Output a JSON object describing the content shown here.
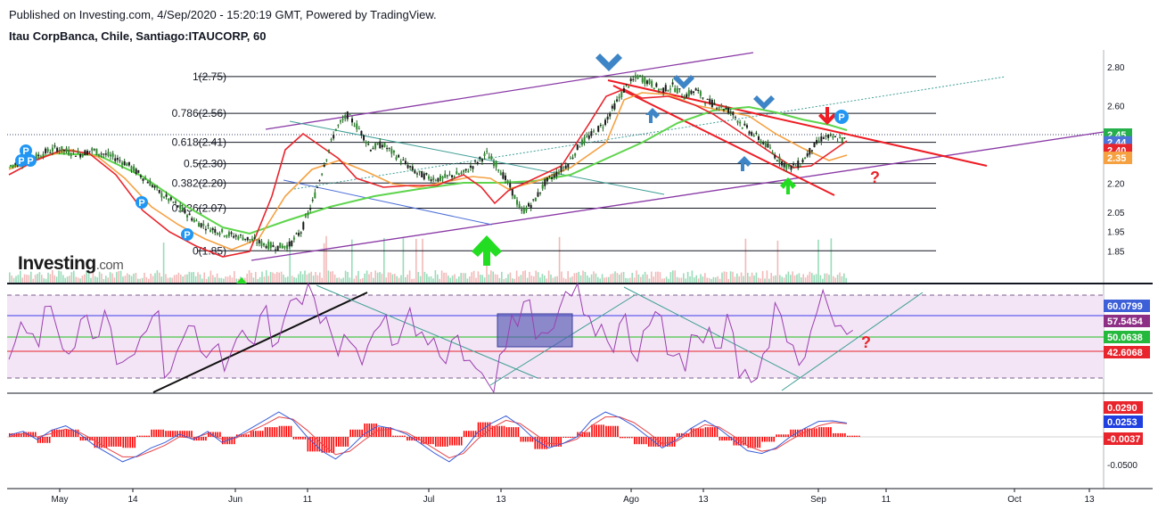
{
  "header": {
    "published": "Published on Investing.com, 4/Sep/2020 - 15:20:19 GMT, Powered by TradingView.",
    "symbol": "Itau CorpBanca, Chile, Santiago:ITAUCORP, 60"
  },
  "logo": {
    "name": "Investing",
    "suffix": ".com"
  },
  "colors": {
    "price_ma_red": "#e8242c",
    "price_ma_orange": "#f5a142",
    "price_ma_green": "#5ed44c",
    "trend_red": "#ee1c24",
    "channel_purple": "#8a3aa6",
    "teal_line": "#3f9f96",
    "rsi": "#9b3fb0",
    "macd": "#3b5fd8",
    "signal": "#e8454a",
    "hist": "#ff0000",
    "arrow_blue": "#3d85c6",
    "arrow_green": "#22dd22"
  },
  "chart_data": [
    {
      "type": "line",
      "panel": "price",
      "title": "",
      "y_axis_ticks": [
        "2.80",
        "2.60",
        "2.45",
        "2.20",
        "2.05",
        "1.95",
        "1.85"
      ],
      "ylim": [
        1.82,
        2.88
      ],
      "x_axis_ticks": [
        "May",
        "14",
        "Jun",
        "11",
        "Jul",
        "13",
        "Ago",
        "13",
        "Sep",
        "11",
        "Oct",
        "13"
      ],
      "fib_levels": [
        {
          "label": "1(2.75)",
          "value": 2.75
        },
        {
          "label": "0.786(2.56)",
          "value": 2.56
        },
        {
          "label": "0.618(2.41)",
          "value": 2.41
        },
        {
          "label": "0.5(2.30)",
          "value": 2.3
        },
        {
          "label": "0.382(2.20)",
          "value": 2.2
        },
        {
          "label": "0.236(2.07)",
          "value": 2.07
        },
        {
          "label": "0(1.85)",
          "value": 1.85
        }
      ],
      "price_tags": [
        {
          "label": "2.45",
          "value": 2.45,
          "color": "#26b04c"
        },
        {
          "label": "2.44",
          "value": 2.41,
          "color": "#4c74d8"
        },
        {
          "label": "2.40",
          "value": 2.37,
          "color": "#e8242c"
        },
        {
          "label": "2.35",
          "value": 2.33,
          "color": "#f5a142"
        }
      ],
      "series": [
        {
          "values": [
            2.29,
            2.31,
            2.33,
            2.36,
            2.38,
            2.36,
            2.35,
            2.37,
            2.35,
            2.33,
            2.3,
            2.25,
            2.2,
            2.14,
            2.1,
            2.05,
            2.0,
            1.97,
            1.95,
            1.93,
            1.92,
            1.9,
            1.88,
            1.87,
            1.88,
            1.95,
            2.1,
            2.3,
            2.48,
            2.55,
            2.48,
            2.38,
            2.4,
            2.35,
            2.3,
            2.25,
            2.23,
            2.22,
            2.24,
            2.25,
            2.3,
            2.35,
            2.28,
            2.18,
            2.05,
            2.1,
            2.2,
            2.25,
            2.3,
            2.4,
            2.45,
            2.5,
            2.6,
            2.7,
            2.75,
            2.72,
            2.68,
            2.7,
            2.65,
            2.68,
            2.62,
            2.6,
            2.57,
            2.5,
            2.45,
            2.4,
            2.33,
            2.28,
            2.3,
            2.38,
            2.44,
            2.43,
            2.42
          ]
        }
      ]
    },
    {
      "type": "line",
      "panel": "rsi",
      "title": "",
      "ylim": [
        20,
        80
      ],
      "y_axis_ticks": [
        "60.0799",
        "57.5454",
        "50.0638",
        "42.6068"
      ],
      "levels": [
        70,
        57.5,
        50,
        42.6,
        30
      ],
      "series": [
        {
          "values": [
            42,
            55,
            48,
            62,
            50,
            38,
            57,
            45,
            60,
            40,
            35,
            46,
            58,
            30,
            42,
            55,
            40,
            48,
            38,
            52,
            45,
            60,
            50,
            62,
            70,
            75,
            58,
            47,
            53,
            42,
            48,
            56,
            44,
            60,
            52,
            46,
            40,
            50,
            38,
            30,
            25,
            45,
            58,
            62,
            48,
            55,
            66,
            72,
            60,
            55,
            48,
            58,
            42,
            52,
            60,
            45,
            38,
            55,
            50,
            42,
            58,
            35,
            28,
            45,
            62,
            48,
            36,
            55,
            68,
            58,
            52
          ]
        }
      ]
    },
    {
      "type": "line",
      "panel": "macd",
      "title": "",
      "y_axis_ticks": [
        "0.0290",
        "0.0253",
        "-0.0037",
        "-0.0500"
      ],
      "ylim": [
        -0.065,
        0.045
      ],
      "series": [
        {
          "values": [
            0.003,
            0.01,
            -0.005,
            0.012,
            0.02,
            0.005,
            -0.015,
            -0.03,
            -0.045,
            -0.035,
            -0.02,
            -0.01,
            0.005,
            -0.005,
            0.01,
            -0.01,
            0.0,
            0.015,
            0.03,
            0.045,
            0.03,
            0.0,
            -0.025,
            -0.04,
            -0.02,
            0.005,
            0.02,
            0.015,
            0.005,
            -0.012,
            -0.03,
            -0.045,
            -0.025,
            0.008,
            0.025,
            0.038,
            0.02,
            -0.004,
            -0.02,
            -0.012,
            0.0,
            0.03,
            0.045,
            0.035,
            0.02,
            0.0,
            -0.02,
            -0.005,
            0.015,
            0.03,
            0.015,
            -0.005,
            -0.025,
            -0.03,
            -0.02,
            0.0,
            0.015,
            0.028,
            0.029,
            0.025
          ]
        },
        {
          "values": [
            0.0,
            0.006,
            0.0,
            0.006,
            0.014,
            0.008,
            -0.006,
            -0.022,
            -0.036,
            -0.036,
            -0.026,
            -0.015,
            0.0,
            -0.002,
            0.006,
            -0.004,
            -0.002,
            0.01,
            0.022,
            0.036,
            0.032,
            0.012,
            -0.012,
            -0.032,
            -0.026,
            -0.006,
            0.012,
            0.014,
            0.008,
            -0.006,
            -0.022,
            -0.038,
            -0.03,
            -0.004,
            0.016,
            0.03,
            0.024,
            0.006,
            -0.012,
            -0.012,
            -0.004,
            0.02,
            0.036,
            0.036,
            0.026,
            0.008,
            -0.012,
            -0.008,
            0.008,
            0.022,
            0.018,
            0.002,
            -0.016,
            -0.026,
            -0.022,
            -0.006,
            0.008,
            0.02,
            0.026,
            0.024
          ]
        }
      ]
    }
  ]
}
